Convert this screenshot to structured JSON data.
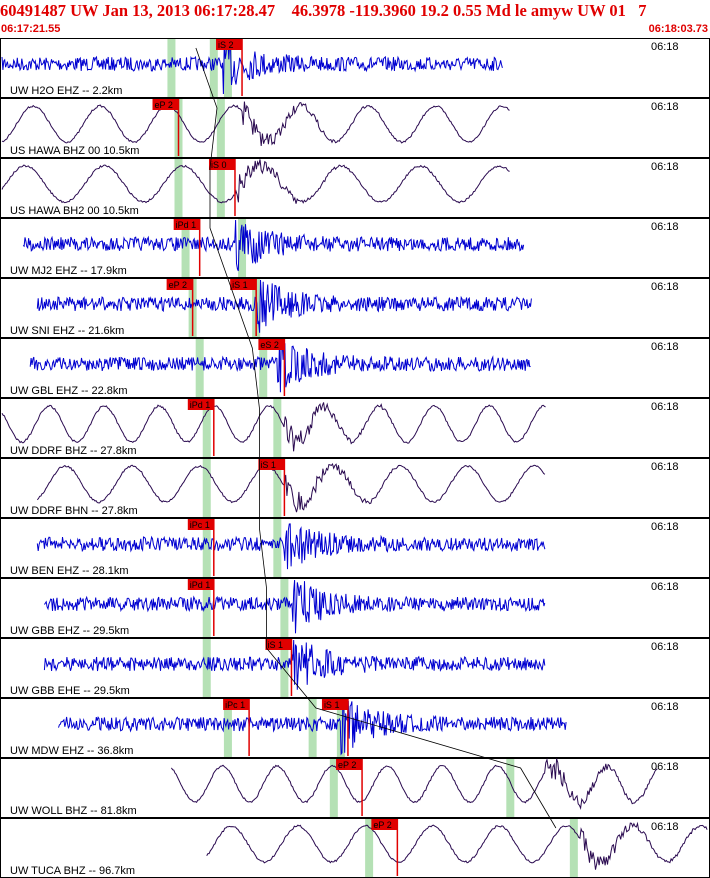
{
  "header": {
    "title": "60491487 UW Jan 13, 2013 06:17:28.47    46.3978 -119.3960 19.2 0.55 Md le amyw UW 01   7",
    "start_time": "06:17:21.55",
    "end_time": "06:18:03.73"
  },
  "colors": {
    "header_text": "#e00000",
    "trace_short_period": "#0000d0",
    "trace_broadband": "#2a0a50",
    "pick_flag": "#e00000",
    "pick_window": "#a8dca8",
    "panel_border": "#000000",
    "moveout_curve": "#000000"
  },
  "chart_data": {
    "type": "line",
    "title": "60491487 UW Jan 13, 2013 06:17:28.47    46.3978 -119.3960 19.2 0.55 Md le amyw UW 01   7",
    "x_range": [
      "06:17:21.55",
      "06:18:03.73"
    ],
    "time_marker_label": "06:18",
    "traces": [
      {
        "label": "UW H2O EHZ -- 2.2km",
        "channel_type": "short-period",
        "trace_span": [
          0.0,
          0.71
        ],
        "signal_onset": 0.31,
        "picks": [
          {
            "label": "iS 2",
            "t": 0.34
          }
        ],
        "green_windows": [
          0.24,
          0.3,
          0.32
        ]
      },
      {
        "label": "US HAWA BHZ 00 10.5km",
        "channel_type": "broadband",
        "trace_span": [
          0.0,
          0.72
        ],
        "signal_onset": 0.34,
        "picks": [
          {
            "label": "eP 2",
            "t": 0.25
          }
        ],
        "green_windows": [
          0.25,
          0.31
        ]
      },
      {
        "label": "US HAWA BH2 00 10.5km",
        "channel_type": "broadband",
        "trace_span": [
          0.0,
          0.72
        ],
        "signal_onset": 0.33,
        "picks": [
          {
            "label": "iS 0",
            "t": 0.33
          }
        ],
        "green_windows": [
          0.25,
          0.31
        ]
      },
      {
        "label": "UW MJ2 EHZ -- 17.9km",
        "channel_type": "short-period",
        "trace_span": [
          0.03,
          0.74
        ],
        "signal_onset": 0.33,
        "picks": [
          {
            "label": "iPd 1",
            "t": 0.28
          }
        ],
        "green_windows": [
          0.26,
          0.34
        ]
      },
      {
        "label": "UW SNI EHZ -- 21.6km",
        "channel_type": "short-period",
        "trace_span": [
          0.05,
          0.75
        ],
        "signal_onset": 0.36,
        "picks": [
          {
            "label": "eP 2",
            "t": 0.27
          },
          {
            "label": "iS 1",
            "t": 0.36
          }
        ],
        "green_windows": [
          0.27,
          0.36
        ]
      },
      {
        "label": "UW GBL EHZ -- 22.8km",
        "channel_type": "short-period",
        "trace_span": [
          0.04,
          0.75
        ],
        "signal_onset": 0.39,
        "picks": [
          {
            "label": "eS 2",
            "t": 0.4
          }
        ],
        "green_windows": [
          0.28,
          0.37
        ]
      },
      {
        "label": "UW DDRF BHZ -- 27.8km",
        "channel_type": "broadband",
        "trace_span": [
          0.0,
          0.77
        ],
        "signal_onset": 0.4,
        "picks": [
          {
            "label": "iPd 1",
            "t": 0.3
          }
        ],
        "green_windows": [
          0.29,
          0.39
        ]
      },
      {
        "label": "UW DDRF BHN -- 27.8km",
        "channel_type": "broadband",
        "trace_span": [
          0.05,
          0.77
        ],
        "signal_onset": 0.4,
        "picks": [
          {
            "label": "iS 1",
            "t": 0.4
          }
        ],
        "green_windows": [
          0.29,
          0.39
        ]
      },
      {
        "label": "UW BEN EHZ -- 28.1km",
        "channel_type": "short-period",
        "trace_span": [
          0.05,
          0.77
        ],
        "signal_onset": 0.4,
        "picks": [
          {
            "label": "iPc 1",
            "t": 0.3
          }
        ],
        "green_windows": [
          0.29,
          0.39
        ]
      },
      {
        "label": "UW GBB EHZ -- 29.5km",
        "channel_type": "short-period",
        "trace_span": [
          0.06,
          0.77
        ],
        "signal_onset": 0.41,
        "picks": [
          {
            "label": "iPd 1",
            "t": 0.3
          }
        ],
        "green_windows": [
          0.29,
          0.4
        ]
      },
      {
        "label": "UW GBB EHE -- 29.5km",
        "channel_type": "short-period",
        "trace_span": [
          0.06,
          0.77
        ],
        "signal_onset": 0.41,
        "picks": [
          {
            "label": "iS 1",
            "t": 0.41
          }
        ],
        "green_windows": [
          0.29,
          0.4
        ]
      },
      {
        "label": "UW MDW EHZ -- 36.8km",
        "channel_type": "short-period",
        "trace_span": [
          0.08,
          0.8
        ],
        "signal_onset": 0.48,
        "picks": [
          {
            "label": "iPc 1",
            "t": 0.35
          },
          {
            "label": "iS 1",
            "t": 0.49
          }
        ],
        "green_windows": [
          0.32,
          0.44,
          0.48
        ]
      },
      {
        "label": "UW WOLL BHZ -- 81.8km",
        "channel_type": "broadband",
        "trace_span": [
          0.24,
          0.93
        ],
        "signal_onset": 0.77,
        "picks": [
          {
            "label": "eP 2",
            "t": 0.51
          }
        ],
        "green_windows": [
          0.47,
          0.72
        ]
      },
      {
        "label": "UW TUCA BHZ -- 96.7km",
        "channel_type": "broadband",
        "trace_span": [
          0.29,
          1.0
        ],
        "signal_onset": 0.82,
        "picks": [
          {
            "label": "eP 2",
            "t": 0.56
          }
        ],
        "green_windows": [
          0.52,
          0.81
        ]
      }
    ]
  }
}
